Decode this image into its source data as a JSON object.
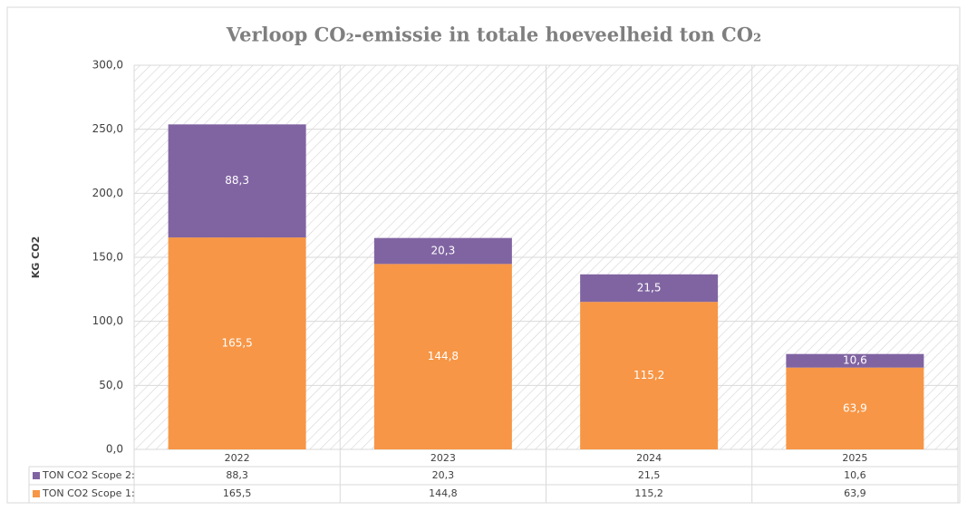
{
  "chart_data": {
    "type": "stacked_bar",
    "title": "Verloop CO₂-emissie in totale hoeveelheid ton CO₂",
    "y_label": "KG CO2",
    "categories": [
      "2022",
      "2023",
      "2024",
      "2025"
    ],
    "series": [
      {
        "name": "TON CO2 Scope 2:",
        "color": "#8064a2",
        "values": [
          88.3,
          20.3,
          21.5,
          10.6
        ],
        "value_labels": [
          "88,3",
          "20,3",
          "21,5",
          "10,6"
        ]
      },
      {
        "name": "TON CO2 Scope 1:",
        "color": "#f79646",
        "values": [
          165.5,
          144.8,
          115.2,
          63.9
        ],
        "value_labels": [
          "165,5",
          "144,8",
          "115,2",
          "63,9"
        ]
      }
    ],
    "ylim": [
      0,
      300
    ],
    "yticks": [
      {
        "value": 0,
        "label": "0,0"
      },
      {
        "value": 50,
        "label": "50,0"
      },
      {
        "value": 100,
        "label": "100,0"
      },
      {
        "value": 150,
        "label": "150,0"
      },
      {
        "value": 200,
        "label": "200,0"
      },
      {
        "value": 250,
        "label": "250,0"
      },
      {
        "value": 300,
        "label": "300,0"
      }
    ],
    "grid": true
  }
}
